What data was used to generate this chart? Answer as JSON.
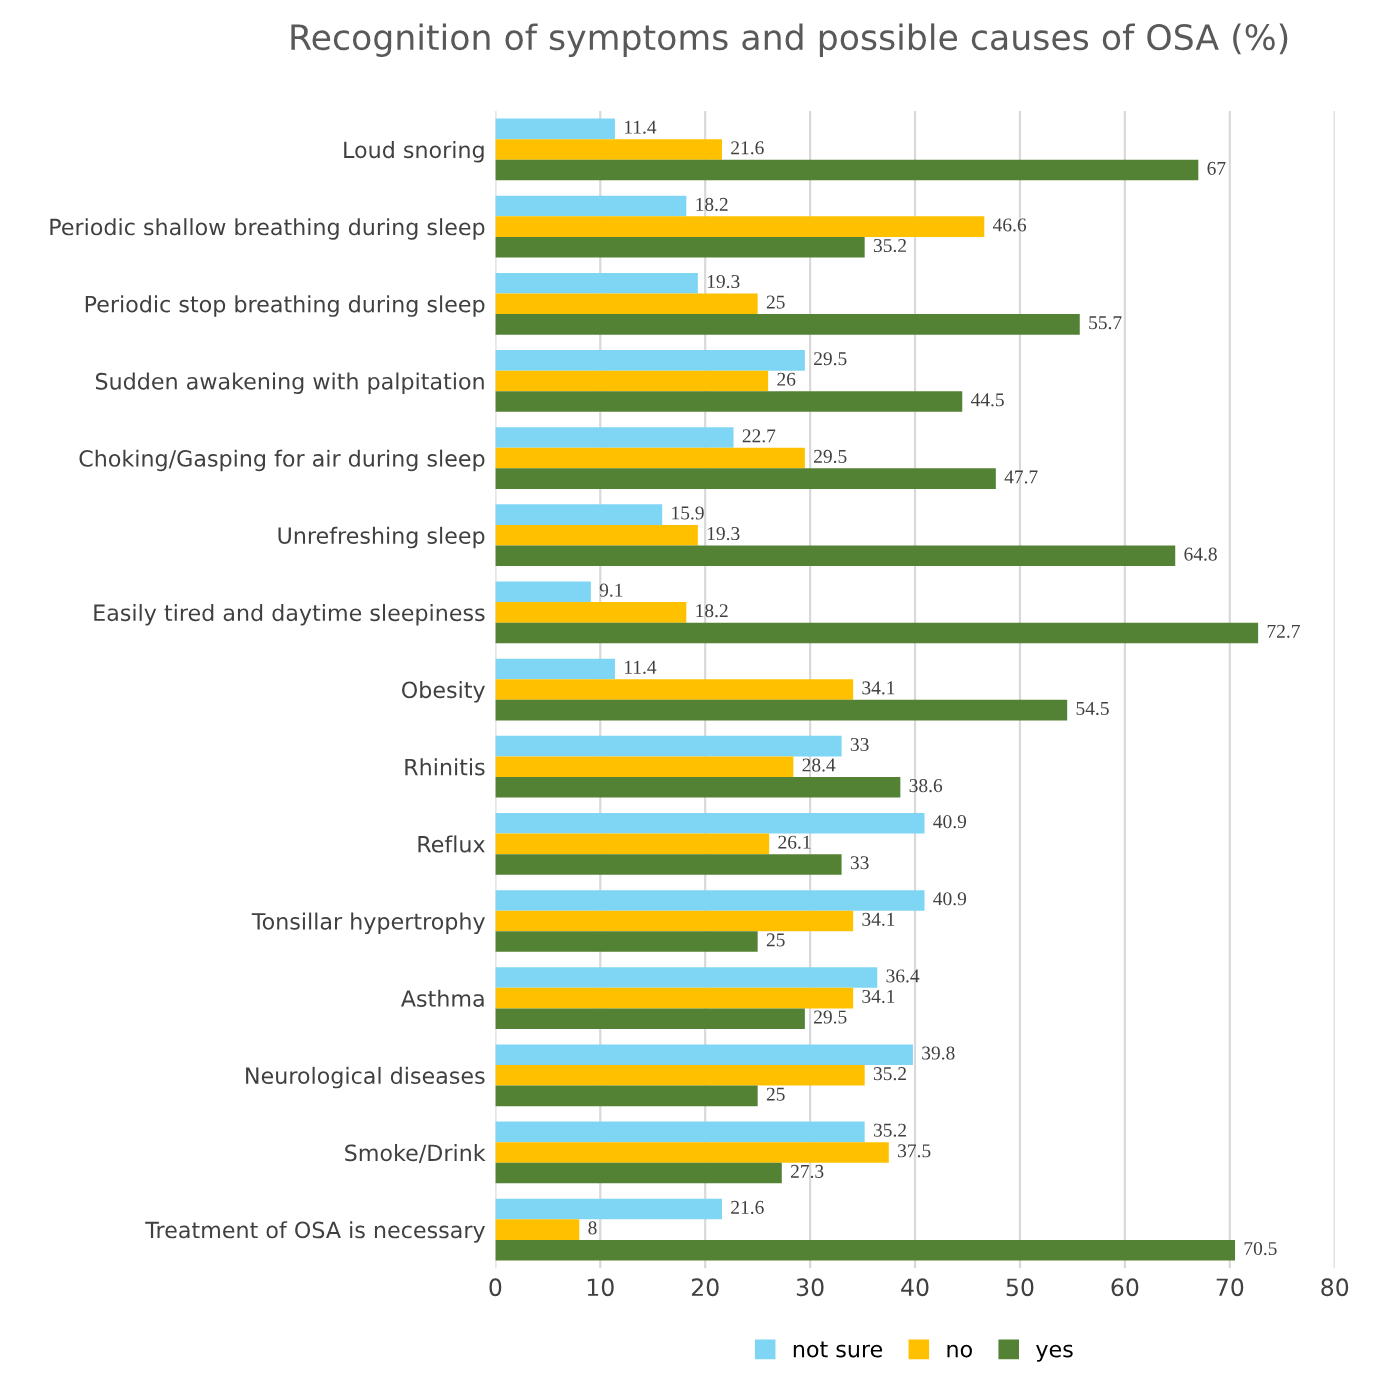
{
  "chart_data": {
    "type": "bar",
    "orientation": "horizontal",
    "title": "Recognition of symptoms and possible causes of OSA (%)",
    "categories": [
      "Loud snoring",
      "Periodic shallow breathing during sleep",
      "Periodic stop breathing during sleep",
      "Sudden awakening with palpitation",
      "Choking/Gasping for air during sleep",
      "Unrefreshing sleep",
      "Easily tired and daytime sleepiness",
      "Obesity",
      "Rhinitis",
      "Reflux",
      "Tonsillar hypertrophy",
      "Asthma",
      "Neurological diseases",
      "Smoke/Drink",
      "Treatment of OSA is necessary"
    ],
    "series": [
      {
        "name": "not sure",
        "color": "#7fd6f4",
        "values": [
          11.4,
          18.2,
          19.3,
          29.5,
          22.7,
          15.9,
          9.1,
          11.4,
          33,
          40.9,
          40.9,
          36.4,
          39.8,
          35.2,
          21.6
        ]
      },
      {
        "name": "no",
        "color": "#ffc000",
        "values": [
          21.6,
          46.6,
          25,
          26,
          29.5,
          19.3,
          18.2,
          34.1,
          28.4,
          26.1,
          34.1,
          34.1,
          35.2,
          37.5,
          8
        ]
      },
      {
        "name": "yes",
        "color": "#548235",
        "values": [
          67,
          35.2,
          55.7,
          44.5,
          47.7,
          64.8,
          72.7,
          54.5,
          38.6,
          33,
          25,
          29.5,
          25,
          27.3,
          70.5
        ]
      }
    ],
    "xlim": [
      0,
      80
    ],
    "xticks": [
      0,
      10,
      20,
      30,
      40,
      50,
      60,
      70,
      80
    ],
    "grid": "x",
    "legend": "bottom",
    "data_labels": true
  }
}
